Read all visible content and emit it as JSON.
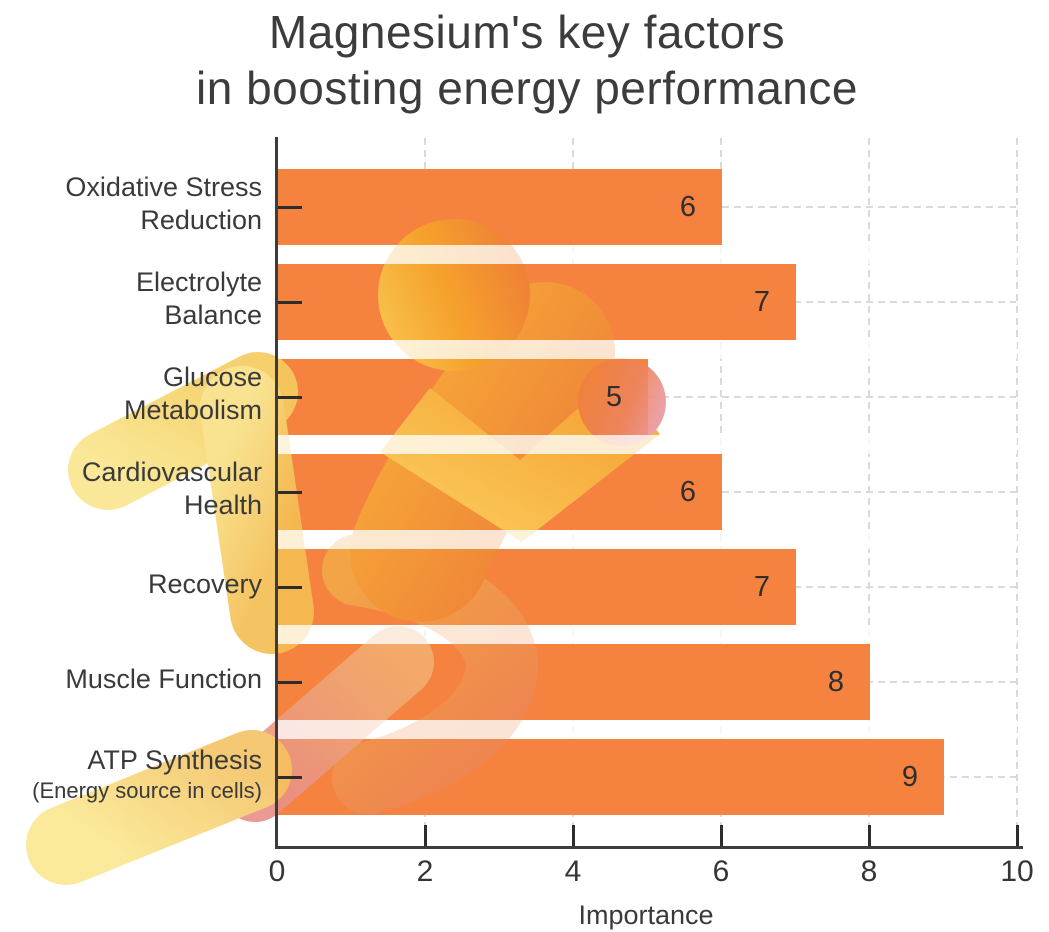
{
  "title": {
    "line1": "Magnesium's key factors",
    "line2": "in boosting energy performance"
  },
  "chart_data": {
    "type": "bar",
    "orientation": "horizontal",
    "title": "Magnesium's key factors in boosting energy performance",
    "categories": [
      "Oxidative Stress Reduction",
      "Electrolyte Balance",
      "Glucose Metabolism",
      "Cardiovascular Health",
      "Recovery",
      "Muscle Function",
      "ATP Synthesis (Energy source in cells)"
    ],
    "values": [
      6,
      7,
      5,
      6,
      7,
      8,
      9
    ],
    "rows": [
      {
        "label_lines": [
          "Oxidative Stress",
          "Reduction"
        ],
        "sublabel": null,
        "value": 6
      },
      {
        "label_lines": [
          "Electrolyte",
          "Balance"
        ],
        "sublabel": null,
        "value": 7
      },
      {
        "label_lines": [
          "Glucose",
          "Metabolism"
        ],
        "sublabel": null,
        "value": 5
      },
      {
        "label_lines": [
          "Cardiovascular",
          "Health"
        ],
        "sublabel": null,
        "value": 6
      },
      {
        "label_lines": [
          "Recovery"
        ],
        "sublabel": null,
        "value": 7
      },
      {
        "label_lines": [
          "Muscle Function"
        ],
        "sublabel": null,
        "value": 8
      },
      {
        "label_lines": [
          "ATP Synthesis"
        ],
        "sublabel": "(Energy source in cells)",
        "value": 9
      }
    ],
    "xlabel": "Importance",
    "xlim": [
      0,
      10
    ],
    "x_ticks": [
      0,
      2,
      4,
      6,
      8,
      10
    ],
    "grid": {
      "vertical": true,
      "horizontal": true,
      "style": "dashed"
    },
    "value_labels": "inside-end",
    "legend": null,
    "bar_color": "#F5823F"
  },
  "colors": {
    "bar": "#F5823F",
    "title_text": "#3C3C3C",
    "label_text": "#3A3A3A",
    "value_text": "#2E2E2E",
    "grid": "#DADADA",
    "axis": "#3C3C3C",
    "runner_palette": [
      "#F9E48C",
      "#F7C95E",
      "#F5A02C",
      "#EE7F35",
      "#EC8F8F"
    ]
  },
  "illustration": {
    "name": "abstract-runner-figure"
  }
}
